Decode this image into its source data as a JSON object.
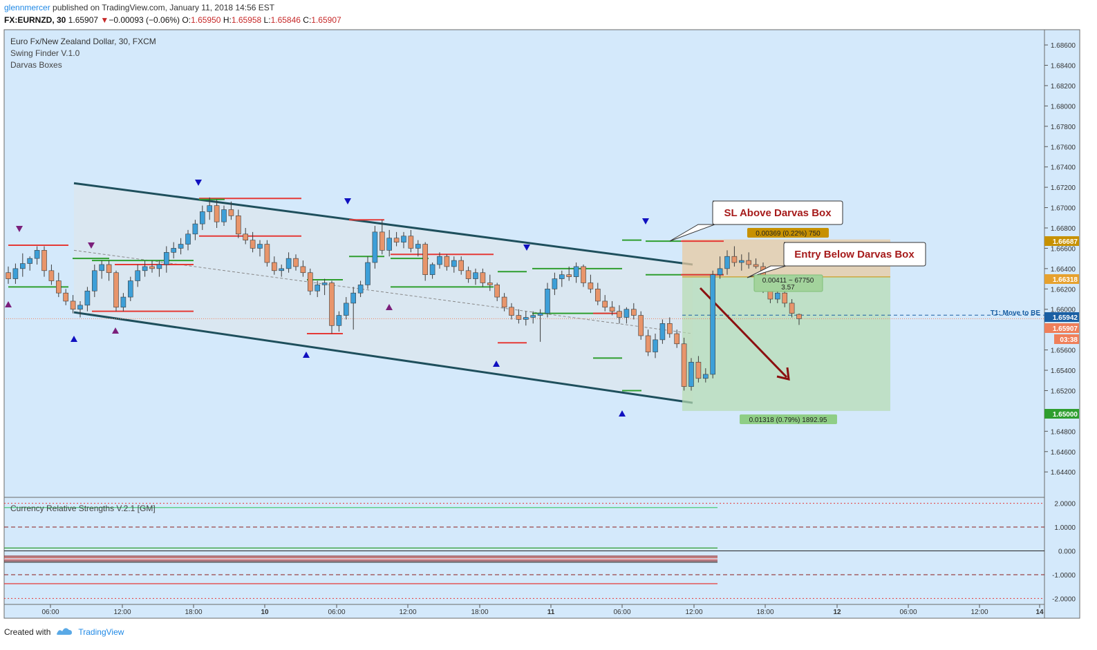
{
  "header": {
    "user": "glennmercer",
    "published": " published on TradingView.com, January 11, 2018 14:56 EST",
    "symbol": "FX:EURNZD, 30",
    "last": "1.65907",
    "arrow": "▼",
    "change": "−0.00093 (−0.06%)",
    "o_label": "O:",
    "o_val": "1.65950",
    "h_label": "H:",
    "h_val": "1.65958",
    "l_label": "L:",
    "l_val": "1.65846",
    "c_label": "C:",
    "c_val": "1.65907"
  },
  "legend": {
    "title": "Euro Fx/New Zealand Dollar, 30, FXCM",
    "ind1": "Swing Finder V.1.0",
    "ind2": "Darvas Boxes",
    "sub": "Currency Relative Strengths V.2.1 [GM]"
  },
  "annotations": {
    "callout_sl": "SL Above Darvas Box",
    "callout_entry": "Entry Below Darvas Box",
    "risk_label": "0.00369 (0.22%) 750",
    "entry_label1": "0.00411 ~ 67750",
    "entry_label2": "3.57",
    "target_label": "0.01318 (0.79%) 1892.95",
    "t1_label": "T1:  Move to BE"
  },
  "price_tags": {
    "stop": "1.66687",
    "entry": "1.66318",
    "t1": "1.65942",
    "last": "1.65907",
    "countdown": "03:38",
    "target": "1.65000"
  },
  "footer": {
    "created": "Created with",
    "brand": "TradingView"
  },
  "colors": {
    "background": "#d4e9fb",
    "bull": "#3d9fd8",
    "bear": "#e8956b",
    "channel": "#1e4f5c",
    "box_top": "#e53935",
    "box_bottom": "#2e9e2e",
    "stop_tag": "#c79100",
    "entry_tag": "#e6a12e",
    "t1_tag": "#1a5fa3",
    "last_tag": "#ef7f5a",
    "target_tag": "#2e9e2e",
    "arrow": "#8b1010"
  },
  "chart_data": {
    "type": "candlestick",
    "symbol": "FX:EURNZD",
    "timeframe": "30",
    "x_ticks": [
      "06:00",
      "12:00",
      "18:00",
      "10",
      "06:00",
      "12:00",
      "18:00",
      "11",
      "06:00",
      "12:00",
      "18:00",
      "12",
      "06:00",
      "12:00",
      "14"
    ],
    "y_ticks": [
      "1.68600",
      "1.68400",
      "1.68200",
      "1.68000",
      "1.67800",
      "1.67600",
      "1.67400",
      "1.67200",
      "1.67000",
      "1.66800",
      "1.66600",
      "1.66400",
      "1.66200",
      "1.66000",
      "1.65800",
      "1.65600",
      "1.65400",
      "1.65200",
      "1.65000",
      "1.64800",
      "1.64600",
      "1.64400"
    ],
    "ylim": [
      1.6415,
      1.6875
    ],
    "candles": [
      [
        1.6636,
        1.6642,
        1.6625,
        1.663
      ],
      [
        1.663,
        1.6645,
        1.6625,
        1.664
      ],
      [
        1.664,
        1.6655,
        1.6632,
        1.6645
      ],
      [
        1.6645,
        1.6652,
        1.6638,
        1.665
      ],
      [
        1.665,
        1.6662,
        1.6644,
        1.6658
      ],
      [
        1.6658,
        1.6662,
        1.6632,
        1.6638
      ],
      [
        1.6638,
        1.6644,
        1.6624,
        1.6628
      ],
      [
        1.6628,
        1.6636,
        1.6612,
        1.6616
      ],
      [
        1.6616,
        1.662,
        1.6604,
        1.6608
      ],
      [
        1.6608,
        1.6614,
        1.6596,
        1.66
      ],
      [
        1.66,
        1.6608,
        1.6592,
        1.6604
      ],
      [
        1.6604,
        1.6622,
        1.6598,
        1.6618
      ],
      [
        1.6618,
        1.6644,
        1.6612,
        1.6638
      ],
      [
        1.6638,
        1.6648,
        1.663,
        1.6644
      ],
      [
        1.6644,
        1.6648,
        1.6628,
        1.6636
      ],
      [
        1.6636,
        1.6638,
        1.6598,
        1.6602
      ],
      [
        1.6602,
        1.6616,
        1.6598,
        1.6612
      ],
      [
        1.6612,
        1.6632,
        1.6608,
        1.6628
      ],
      [
        1.6628,
        1.6644,
        1.6622,
        1.6638
      ],
      [
        1.6638,
        1.6648,
        1.6632,
        1.6642
      ],
      [
        1.6642,
        1.6648,
        1.6636,
        1.664
      ],
      [
        1.664,
        1.6648,
        1.6632,
        1.6644
      ],
      [
        1.6644,
        1.6662,
        1.6636,
        1.6656
      ],
      [
        1.6656,
        1.6666,
        1.665,
        1.666
      ],
      [
        1.666,
        1.667,
        1.6654,
        1.6664
      ],
      [
        1.6664,
        1.6678,
        1.6658,
        1.6674
      ],
      [
        1.6674,
        1.6688,
        1.6668,
        1.6684
      ],
      [
        1.6684,
        1.6702,
        1.6678,
        1.6696
      ],
      [
        1.6696,
        1.671,
        1.6688,
        1.6702
      ],
      [
        1.6702,
        1.6708,
        1.668,
        1.6686
      ],
      [
        1.6686,
        1.6702,
        1.6682,
        1.6698
      ],
      [
        1.6698,
        1.6706,
        1.6688,
        1.6692
      ],
      [
        1.6692,
        1.6698,
        1.667,
        1.6674
      ],
      [
        1.6674,
        1.668,
        1.6664,
        1.6668
      ],
      [
        1.6668,
        1.6676,
        1.6656,
        1.666
      ],
      [
        1.666,
        1.6668,
        1.6652,
        1.6664
      ],
      [
        1.6664,
        1.6668,
        1.6642,
        1.6646
      ],
      [
        1.6646,
        1.6652,
        1.6634,
        1.6638
      ],
      [
        1.6638,
        1.6644,
        1.6632,
        1.664
      ],
      [
        1.664,
        1.6656,
        1.6636,
        1.665
      ],
      [
        1.665,
        1.6654,
        1.6638,
        1.6642
      ],
      [
        1.6642,
        1.6648,
        1.6632,
        1.6636
      ],
      [
        1.6636,
        1.664,
        1.6614,
        1.6618
      ],
      [
        1.6618,
        1.6628,
        1.6612,
        1.6624
      ],
      [
        1.6624,
        1.663,
        1.6614,
        1.6626
      ],
      [
        1.6626,
        1.6628,
        1.6576,
        1.6584
      ],
      [
        1.6584,
        1.6598,
        1.6578,
        1.6594
      ],
      [
        1.6594,
        1.6612,
        1.659,
        1.6606
      ],
      [
        1.6606,
        1.6622,
        1.658,
        1.6616
      ],
      [
        1.6616,
        1.6628,
        1.6612,
        1.6624
      ],
      [
        1.6624,
        1.6652,
        1.662,
        1.6646
      ],
      [
        1.6646,
        1.6682,
        1.664,
        1.6676
      ],
      [
        1.6676,
        1.6688,
        1.6654,
        1.6658
      ],
      [
        1.6658,
        1.6678,
        1.6652,
        1.667
      ],
      [
        1.667,
        1.6676,
        1.6662,
        1.6666
      ],
      [
        1.6666,
        1.6676,
        1.666,
        1.6672
      ],
      [
        1.6672,
        1.6678,
        1.6656,
        1.666
      ],
      [
        1.666,
        1.6668,
        1.6652,
        1.6664
      ],
      [
        1.6664,
        1.6666,
        1.6628,
        1.6634
      ],
      [
        1.6634,
        1.6646,
        1.663,
        1.6644
      ],
      [
        1.6644,
        1.6656,
        1.664,
        1.6652
      ],
      [
        1.6652,
        1.6654,
        1.6638,
        1.6642
      ],
      [
        1.6642,
        1.6652,
        1.6636,
        1.6648
      ],
      [
        1.6648,
        1.6652,
        1.6634,
        1.6638
      ],
      [
        1.6638,
        1.6642,
        1.6626,
        1.663
      ],
      [
        1.663,
        1.664,
        1.6624,
        1.6636
      ],
      [
        1.6636,
        1.664,
        1.6622,
        1.6626
      ],
      [
        1.6626,
        1.6634,
        1.6618,
        1.6624
      ],
      [
        1.6624,
        1.6626,
        1.6608,
        1.6612
      ],
      [
        1.6612,
        1.6616,
        1.6598,
        1.6602
      ],
      [
        1.6602,
        1.6606,
        1.659,
        1.6594
      ],
      [
        1.6594,
        1.66,
        1.6586,
        1.659
      ],
      [
        1.659,
        1.6598,
        1.6584,
        1.6592
      ],
      [
        1.6592,
        1.6598,
        1.6586,
        1.6594
      ],
      [
        1.6594,
        1.66,
        1.6568,
        1.6596
      ],
      [
        1.6596,
        1.6626,
        1.6592,
        1.662
      ],
      [
        1.662,
        1.6636,
        1.6614,
        1.663
      ],
      [
        1.663,
        1.6638,
        1.6622,
        1.6634
      ],
      [
        1.6634,
        1.6642,
        1.6628,
        1.6632
      ],
      [
        1.6632,
        1.6646,
        1.6626,
        1.6642
      ],
      [
        1.6642,
        1.6644,
        1.6622,
        1.6626
      ],
      [
        1.6626,
        1.6634,
        1.6616,
        1.662
      ],
      [
        1.662,
        1.6626,
        1.6604,
        1.6608
      ],
      [
        1.6608,
        1.6614,
        1.6598,
        1.6602
      ],
      [
        1.6602,
        1.6608,
        1.6594,
        1.6598
      ],
      [
        1.6598,
        1.6604,
        1.6586,
        1.6592
      ],
      [
        1.6592,
        1.6602,
        1.6586,
        1.66
      ],
      [
        1.66,
        1.6606,
        1.659,
        1.6594
      ],
      [
        1.6594,
        1.6598,
        1.657,
        1.6574
      ],
      [
        1.6574,
        1.658,
        1.6554,
        1.6558
      ],
      [
        1.6558,
        1.6576,
        1.6552,
        1.657
      ],
      [
        1.657,
        1.659,
        1.6566,
        1.6586
      ],
      [
        1.6586,
        1.6592,
        1.6572,
        1.6576
      ],
      [
        1.6576,
        1.658,
        1.6562,
        1.6566
      ],
      [
        1.6566,
        1.6572,
        1.652,
        1.6524
      ],
      [
        1.6524,
        1.6552,
        1.652,
        1.6548
      ],
      [
        1.6548,
        1.6554,
        1.6528,
        1.6532
      ],
      [
        1.6532,
        1.6542,
        1.6528,
        1.6536
      ],
      [
        1.6536,
        1.6638,
        1.6532,
        1.6634
      ],
      [
        1.6634,
        1.6652,
        1.663,
        1.664
      ],
      [
        1.664,
        1.6658,
        1.6634,
        1.6652
      ],
      [
        1.6652,
        1.6662,
        1.6642,
        1.6646
      ],
      [
        1.6646,
        1.6654,
        1.6638,
        1.6648
      ],
      [
        1.6648,
        1.6656,
        1.664,
        1.6644
      ],
      [
        1.6644,
        1.665,
        1.664,
        1.6642
      ],
      [
        1.6642,
        1.6646,
        1.6616,
        1.6618
      ],
      [
        1.6618,
        1.6624,
        1.6606,
        1.661
      ],
      [
        1.661,
        1.662,
        1.6606,
        1.6616
      ],
      [
        1.6616,
        1.6622,
        1.6602,
        1.6606
      ],
      [
        1.6606,
        1.661,
        1.6592,
        1.6596
      ],
      [
        1.6595,
        1.65958,
        1.65846,
        1.65907
      ]
    ],
    "channel": {
      "upper": [
        1.6724,
        1.6644
      ],
      "lower": [
        1.6597,
        1.6508
      ],
      "mid": [
        1.6658,
        1.6576
      ]
    },
    "position": {
      "type": "short",
      "stop": 1.66687,
      "entry": 1.66318,
      "target": 1.65,
      "t1": 1.65942
    },
    "sub_y_ticks": [
      "2.0000",
      "1.0000",
      "0.000",
      "-1.0000",
      "-2.0000"
    ],
    "sub_ylim": [
      -2.25,
      2.25
    ]
  }
}
